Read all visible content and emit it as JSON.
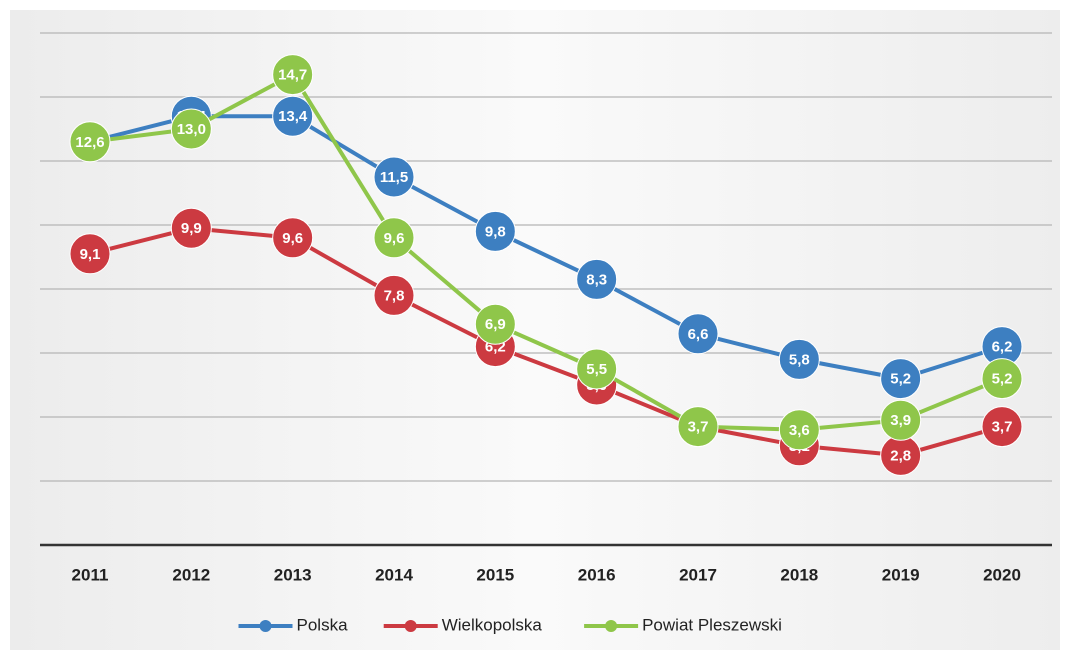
{
  "chart_data": {
    "type": "line",
    "categories": [
      "2011",
      "2012",
      "2013",
      "2014",
      "2015",
      "2016",
      "2017",
      "2018",
      "2019",
      "2020"
    ],
    "series": [
      {
        "name": "Polska",
        "color": "#3d7fc1",
        "values": [
          12.6,
          13.4,
          13.4,
          11.5,
          9.8,
          8.3,
          6.6,
          5.8,
          5.2,
          6.2
        ],
        "value_labels": [
          "12,6",
          "13,4",
          "13,4",
          "11,5",
          "9,8",
          "8,3",
          "6,6",
          "5,8",
          "5,2",
          "6,2"
        ]
      },
      {
        "name": "Wielkopolska",
        "color": "#cc3a41",
        "values": [
          9.1,
          9.9,
          9.6,
          7.8,
          6.2,
          5.0,
          3.7,
          3.1,
          2.8,
          3.7
        ],
        "value_labels": [
          "9,1",
          "9,9",
          "9,6",
          "7,8",
          "6,2",
          "5,0",
          "3,7",
          "3,1",
          "2,8",
          "3,7"
        ]
      },
      {
        "name": "Powiat Pleszewski",
        "color": "#8fc64a",
        "values": [
          12.6,
          13.0,
          14.7,
          9.6,
          6.9,
          5.5,
          3.7,
          3.6,
          3.9,
          5.2
        ],
        "value_labels": [
          "12,6",
          "13,0",
          "14,7",
          "9,6",
          "6,9",
          "5,5",
          "3,7",
          "3,6",
          "3,9",
          "5,2"
        ]
      }
    ],
    "ylim": [
      0,
      16
    ],
    "yticks": [
      0,
      2,
      4,
      6,
      8,
      10,
      12,
      14,
      16
    ],
    "grid": true,
    "legend": "bottom"
  }
}
